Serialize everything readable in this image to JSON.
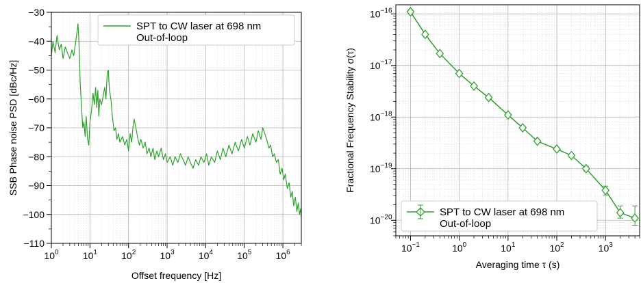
{
  "chart_data": [
    {
      "type": "line",
      "xlabel": "Offset frequency [Hz]",
      "ylabel": "SSB Phase noise PSD [dBc/Hz]",
      "xscale": "log",
      "xlim": [
        1,
        3000000
      ],
      "ylim": [
        -110,
        -30
      ],
      "x_ticks": [
        {
          "value": 1,
          "mant": "10",
          "exp": "0"
        },
        {
          "value": 10,
          "mant": "10",
          "exp": "1"
        },
        {
          "value": 100,
          "mant": "10",
          "exp": "2"
        },
        {
          "value": 1000,
          "mant": "10",
          "exp": "3"
        },
        {
          "value": 10000,
          "mant": "10",
          "exp": "4"
        },
        {
          "value": 100000,
          "mant": "10",
          "exp": "5"
        },
        {
          "value": 1000000,
          "mant": "10",
          "exp": "6"
        }
      ],
      "y_ticks": [
        {
          "value": -30,
          "label": "−30"
        },
        {
          "value": -40,
          "label": "−40"
        },
        {
          "value": -50,
          "label": "−50"
        },
        {
          "value": -60,
          "label": "−60"
        },
        {
          "value": -70,
          "label": "−70"
        },
        {
          "value": -80,
          "label": "−80"
        },
        {
          "value": -90,
          "label": "−90"
        },
        {
          "value": -100,
          "label": "−100"
        },
        {
          "value": -110,
          "label": "−110"
        }
      ],
      "grid": true,
      "legend_position": "top-right",
      "color": "#2ca02c",
      "series": [
        {
          "name": "SPT to CW laser at 698 nm\nOut-of-loop",
          "points": [
            [
              1.0,
              -45
            ],
            [
              1.1,
              -40
            ],
            [
              1.25,
              -44
            ],
            [
              1.4,
              -38
            ],
            [
              1.6,
              -43
            ],
            [
              1.8,
              -41
            ],
            [
              2.0,
              -46
            ],
            [
              2.3,
              -42
            ],
            [
              2.6,
              -44
            ],
            [
              3.0,
              -46
            ],
            [
              3.4,
              -43
            ],
            [
              3.8,
              -45
            ],
            [
              4.2,
              -41
            ],
            [
              4.6,
              -37
            ],
            [
              4.9,
              -34
            ],
            [
              5.2,
              -40
            ],
            [
              5.6,
              -55
            ],
            [
              6.0,
              -62
            ],
            [
              6.5,
              -70
            ],
            [
              7.0,
              -68
            ],
            [
              7.5,
              -73
            ],
            [
              8.0,
              -66
            ],
            [
              8.7,
              -74
            ],
            [
              9.3,
              -76
            ],
            [
              10.0,
              -68
            ],
            [
              11,
              -64
            ],
            [
              12,
              -58
            ],
            [
              13,
              -62
            ],
            [
              14,
              -56
            ],
            [
              15,
              -63
            ],
            [
              16,
              -57
            ],
            [
              17,
              -66
            ],
            [
              18,
              -60
            ],
            [
              20,
              -62
            ],
            [
              22,
              -59
            ],
            [
              24,
              -56
            ],
            [
              26,
              -60
            ],
            [
              28,
              -51
            ],
            [
              30,
              -50
            ],
            [
              32,
              -57
            ],
            [
              35,
              -60
            ],
            [
              38,
              -66
            ],
            [
              42,
              -71
            ],
            [
              46,
              -70
            ],
            [
              50,
              -74
            ],
            [
              55,
              -72
            ],
            [
              60,
              -75
            ],
            [
              70,
              -73
            ],
            [
              80,
              -76
            ],
            [
              90,
              -74
            ],
            [
              100,
              -78
            ],
            [
              110,
              -72
            ],
            [
              120,
              -75
            ],
            [
              130,
              -70
            ],
            [
              140,
              -67
            ],
            [
              155,
              -70
            ],
            [
              170,
              -73
            ],
            [
              190,
              -76
            ],
            [
              210,
              -74
            ],
            [
              240,
              -77
            ],
            [
              270,
              -75
            ],
            [
              300,
              -79
            ],
            [
              340,
              -77
            ],
            [
              380,
              -80
            ],
            [
              430,
              -77
            ],
            [
              480,
              -81
            ],
            [
              540,
              -78
            ],
            [
              600,
              -80
            ],
            [
              700,
              -77
            ],
            [
              800,
              -81
            ],
            [
              900,
              -79
            ],
            [
              1000,
              -82
            ],
            [
              1200,
              -80
            ],
            [
              1400,
              -83
            ],
            [
              1600,
              -80
            ],
            [
              1900,
              -82
            ],
            [
              2200,
              -79
            ],
            [
              2600,
              -81
            ],
            [
              3000,
              -83
            ],
            [
              3500,
              -80
            ],
            [
              4000,
              -82
            ],
            [
              4700,
              -84
            ],
            [
              5500,
              -81
            ],
            [
              6500,
              -83
            ],
            [
              7500,
              -80
            ],
            [
              9000,
              -82
            ],
            [
              10500,
              -79
            ],
            [
              12000,
              -83
            ],
            [
              14000,
              -80
            ],
            [
              17000,
              -82
            ],
            [
              20000,
              -78
            ],
            [
              24000,
              -81
            ],
            [
              28000,
              -77
            ],
            [
              33000,
              -80
            ],
            [
              40000,
              -76
            ],
            [
              48000,
              -79
            ],
            [
              58000,
              -75
            ],
            [
              70000,
              -78
            ],
            [
              85000,
              -74
            ],
            [
              100000,
              -77
            ],
            [
              120000,
              -73
            ],
            [
              140000,
              -76
            ],
            [
              165000,
              -72
            ],
            [
              200000,
              -75
            ],
            [
              230000,
              -71
            ],
            [
              270000,
              -74
            ],
            [
              300000,
              -70
            ],
            [
              340000,
              -72
            ],
            [
              380000,
              -74
            ],
            [
              430000,
              -77
            ],
            [
              480000,
              -76
            ],
            [
              540000,
              -80
            ],
            [
              600000,
              -79
            ],
            [
              680000,
              -82
            ],
            [
              760000,
              -81
            ],
            [
              850000,
              -86
            ],
            [
              950000,
              -84
            ],
            [
              1050000,
              -88
            ],
            [
              1150000,
              -86
            ],
            [
              1300000,
              -91
            ],
            [
              1450000,
              -89
            ],
            [
              1600000,
              -94
            ],
            [
              1750000,
              -92
            ],
            [
              1900000,
              -97
            ],
            [
              2100000,
              -94
            ],
            [
              2300000,
              -99
            ],
            [
              2500000,
              -96
            ],
            [
              2700000,
              -100
            ],
            [
              2900000,
              -98
            ],
            [
              3000000,
              -101
            ]
          ]
        }
      ]
    },
    {
      "type": "line",
      "xlabel": "Averaging time τ (s)",
      "ylabel": "Fractional Frequency Stability σ(τ)",
      "xscale": "log",
      "yscale": "log",
      "xlim": [
        0.05,
        5000
      ],
      "ylim": [
        5e-21,
        1.5e-16
      ],
      "x_ticks": [
        {
          "value": 0.1,
          "mant": "10",
          "exp": "−1"
        },
        {
          "value": 1,
          "mant": "10",
          "exp": "0"
        },
        {
          "value": 10,
          "mant": "10",
          "exp": "1"
        },
        {
          "value": 100,
          "mant": "10",
          "exp": "2"
        },
        {
          "value": 1000,
          "mant": "10",
          "exp": "3"
        }
      ],
      "y_ticks": [
        {
          "value": 1e-16,
          "mant": "10",
          "exp": "−16"
        },
        {
          "value": 1e-17,
          "mant": "10",
          "exp": "−17"
        },
        {
          "value": 1e-18,
          "mant": "10",
          "exp": "−18"
        },
        {
          "value": 1e-19,
          "mant": "10",
          "exp": "−19"
        },
        {
          "value": 1e-20,
          "mant": "10",
          "exp": "−20"
        }
      ],
      "grid": true,
      "legend_position": "bottom-left",
      "color": "#2ca02c",
      "marker": "diamond",
      "series": [
        {
          "name": "SPT to CW laser at 698 nm\nOut-of-loop",
          "points": [
            {
              "x": 0.1,
              "y": 1.1e-16,
              "lo": 1e-16,
              "hi": 1.2e-16
            },
            {
              "x": 0.2,
              "y": 4e-17
            },
            {
              "x": 0.4,
              "y": 1.7e-17
            },
            {
              "x": 1.0,
              "y": 7e-18
            },
            {
              "x": 2.0,
              "y": 4e-18
            },
            {
              "x": 4.0,
              "y": 2.4e-18
            },
            {
              "x": 10,
              "y": 1.1e-18
            },
            {
              "x": 20,
              "y": 6.2e-19
            },
            {
              "x": 40,
              "y": 3.4e-19
            },
            {
              "x": 100,
              "y": 2.4e-19
            },
            {
              "x": 200,
              "y": 1.8e-19
            },
            {
              "x": 400,
              "y": 1e-19,
              "lo": 9e-20,
              "hi": 1.12e-19
            },
            {
              "x": 1000,
              "y": 3.8e-20,
              "lo": 3.1e-20,
              "hi": 4.6e-20
            },
            {
              "x": 2000,
              "y": 1.4e-20,
              "lo": 1.1e-20,
              "hi": 1.9e-20
            },
            {
              "x": 4000,
              "y": 1.1e-20,
              "lo": 8e-21,
              "hi": 1.9e-20
            }
          ]
        }
      ]
    }
  ]
}
